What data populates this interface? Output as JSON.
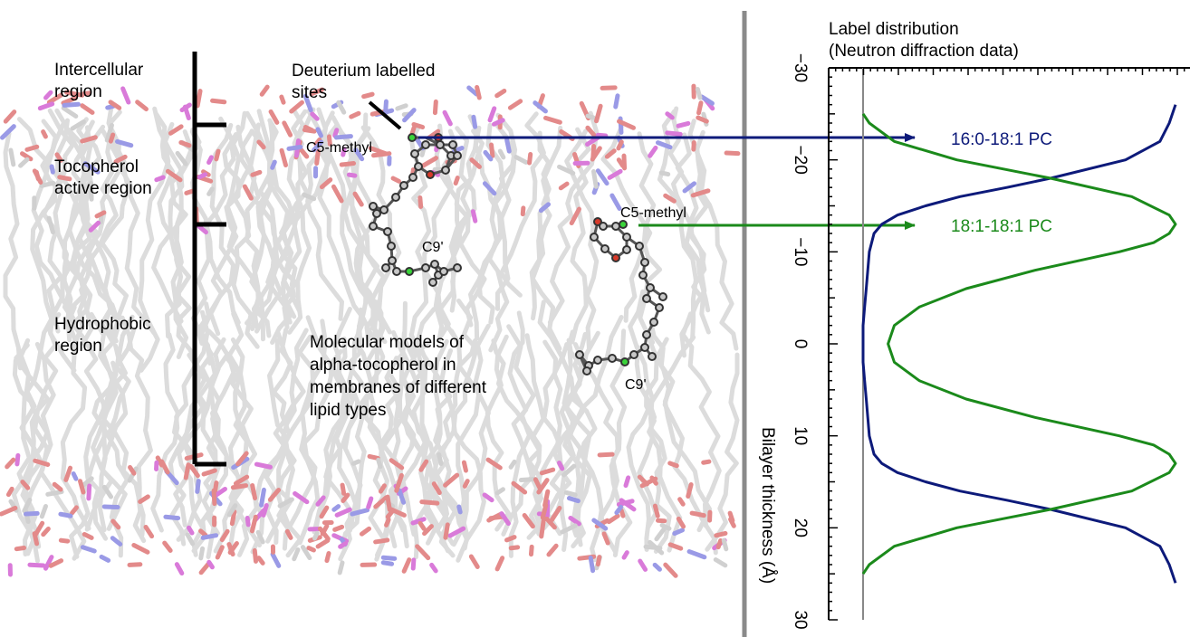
{
  "membrane": {
    "labels": {
      "intercellular": [
        "Intercellular",
        "region"
      ],
      "tocopherol": [
        "Tocopherol",
        "active region"
      ],
      "hydrophobic": [
        "Hydrophobic",
        "region"
      ],
      "deuterium": [
        "Deuterium labelled",
        "sites"
      ],
      "c5_left": "C5-methyl",
      "c9_left": "C9'",
      "c5_right": "C5-methyl",
      "c9_right": "C9'",
      "models": [
        "Molecular models of",
        "alpha-tocopherol in",
        "membranes of different",
        "lipid types"
      ]
    }
  },
  "chart_data": {
    "type": "line",
    "title": "Label distribution",
    "subtitle": "(Neutron diffraction data)",
    "xlabel": "Bilayer thickness (Å)",
    "orientation": "vertical-axis",
    "xlim": [
      -30,
      30
    ],
    "ticks": [
      -30,
      -20,
      -10,
      0,
      10,
      20,
      30
    ],
    "tick_labels": [
      "−30",
      "−20",
      "−10",
      "0",
      "10",
      "20",
      "30"
    ],
    "series": [
      {
        "name": "16:0-18:1 PC",
        "color": "#0d1a7a",
        "x": [
          -26,
          -24,
          -22,
          -20,
          -18,
          -17,
          -16,
          -15,
          -14,
          -13,
          -12,
          -10,
          -8,
          -6,
          -4,
          -2,
          0,
          2,
          4,
          6,
          8,
          10,
          12,
          13,
          14,
          15,
          16,
          17,
          18,
          20,
          22,
          24,
          26
        ],
        "y": [
          1.0,
          0.98,
          0.95,
          0.84,
          0.6,
          0.46,
          0.31,
          0.2,
          0.11,
          0.06,
          0.035,
          0.02,
          0.015,
          0.01,
          0.005,
          0.0,
          0.0,
          0.0,
          0.005,
          0.01,
          0.015,
          0.02,
          0.035,
          0.06,
          0.11,
          0.2,
          0.31,
          0.46,
          0.6,
          0.84,
          0.95,
          0.98,
          1.0
        ]
      },
      {
        "name": "18:1-18:1 PC",
        "color": "#1b8a1b",
        "x": [
          -25,
          -24,
          -22,
          -20,
          -18,
          -16,
          -14,
          -13,
          -12,
          -11,
          -10,
          -8,
          -6,
          -4,
          -2,
          0,
          2,
          4,
          6,
          8,
          10,
          11,
          12,
          13,
          14,
          16,
          18,
          20,
          22,
          24,
          25
        ],
        "y": [
          0.0,
          0.02,
          0.1,
          0.3,
          0.6,
          0.86,
          0.98,
          1.0,
          0.98,
          0.93,
          0.82,
          0.55,
          0.33,
          0.18,
          0.1,
          0.08,
          0.1,
          0.18,
          0.33,
          0.55,
          0.82,
          0.93,
          0.98,
          1.0,
          0.98,
          0.86,
          0.6,
          0.3,
          0.1,
          0.02,
          0.0
        ]
      }
    ],
    "annotations": [
      "16:0-18:1 PC",
      "18:1-18:1 PC"
    ]
  }
}
